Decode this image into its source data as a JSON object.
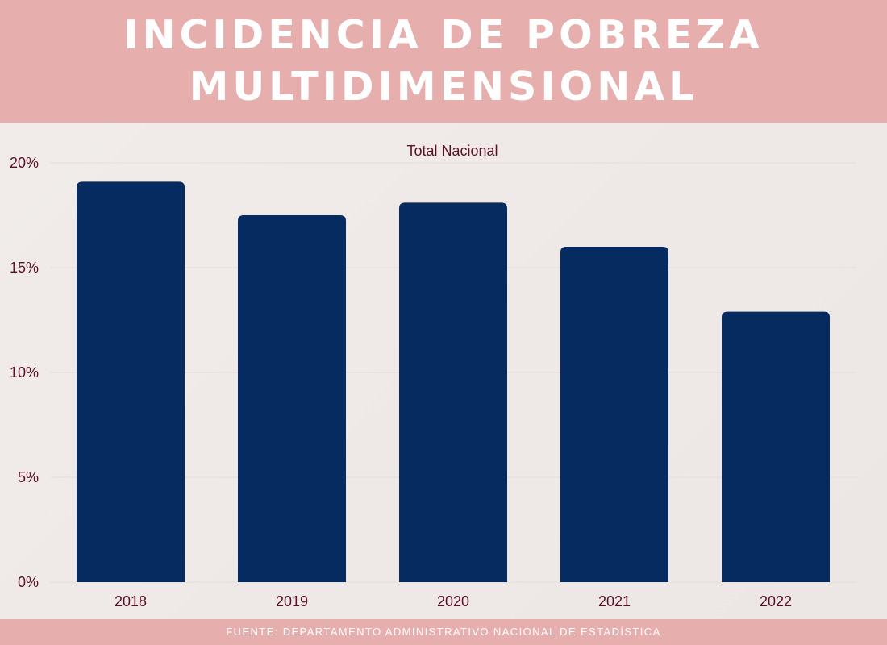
{
  "header": {
    "title_line1": "INCIDENCIA DE POBREZA",
    "title_line2": "MULTIDIMENSIONAL"
  },
  "footer": {
    "source": "FUENTE: DEPARTAMENTO ADMINISTRATIVO NACIONAL DE ESTADÍSTICA"
  },
  "colors": {
    "bar": "#062b60",
    "banner": "#e7aeae",
    "text": "#5a1029"
  },
  "chart_data": {
    "type": "bar",
    "title": "Total Nacional",
    "xlabel": "",
    "ylabel": "",
    "categories": [
      "2018",
      "2019",
      "2020",
      "2021",
      "2022"
    ],
    "series": [
      {
        "values": [
          19.1,
          17.5,
          18.1,
          16.0,
          12.9
        ]
      }
    ],
    "ylim": [
      0,
      20
    ],
    "yticks": [
      0,
      5,
      10,
      15,
      20
    ],
    "ytick_labels": [
      "0%",
      "5%",
      "10%",
      "15%",
      "20%"
    ],
    "grid": true,
    "legend": "none"
  }
}
